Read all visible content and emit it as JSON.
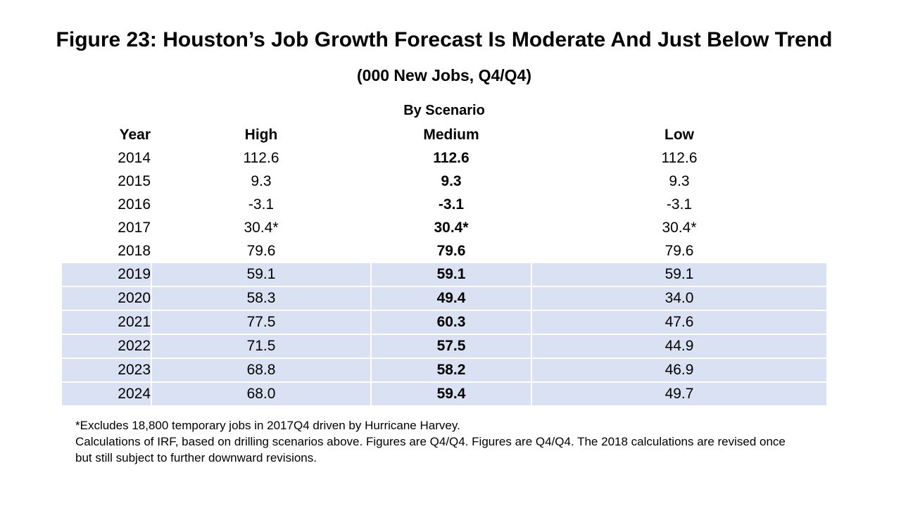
{
  "title": "Figure 23: Houston’s Job Growth Forecast Is Moderate And Just Below Trend",
  "subtitle": "(000 New Jobs, Q4/Q4)",
  "group_header": "By Scenario",
  "columns": {
    "year": "Year",
    "high": "High",
    "medium": "Medium",
    "low": "Low"
  },
  "rows": [
    {
      "year": "2014",
      "high": "112.6",
      "medium": "112.6",
      "low": "112.6"
    },
    {
      "year": "2015",
      "high": "9.3",
      "medium": "9.3",
      "low": "9.3"
    },
    {
      "year": "2016",
      "high": "-3.1",
      "medium": "-3.1",
      "low": "-3.1"
    },
    {
      "year": "2017",
      "high": "30.4*",
      "medium": "30.4*",
      "low": "30.4*"
    },
    {
      "year": "2018",
      "high": "79.6",
      "medium": "79.6",
      "low": "79.6"
    },
    {
      "year": "2019",
      "high": "59.1",
      "medium": "59.1",
      "low": "59.1"
    },
    {
      "year": "2020",
      "high": "58.3",
      "medium": "49.4",
      "low": "34.0"
    },
    {
      "year": "2021",
      "high": "77.5",
      "medium": "60.3",
      "low": "47.6"
    },
    {
      "year": "2022",
      "high": "71.5",
      "medium": "57.5",
      "low": "44.9"
    },
    {
      "year": "2023",
      "high": "68.8",
      "medium": "58.2",
      "low": "46.9"
    },
    {
      "year": "2024",
      "high": "68.0",
      "medium": "59.4",
      "low": "49.7"
    }
  ],
  "forecast_shading_color": "#d9e1f2",
  "notes": {
    "line1": "*Excludes 18,800 temporary jobs in 2017Q4 driven by Hurricane Harvey.",
    "line2": "Calculations of IRF, based on drilling scenarios above.  Figures are Q4/Q4. Figures are Q4/Q4. The 2018 calculations are revised once",
    "line3": "but still subject to further downward revisions."
  }
}
